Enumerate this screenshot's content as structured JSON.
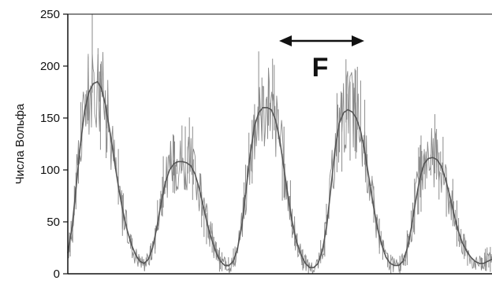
{
  "chart_data": {
    "type": "line",
    "title": "",
    "xlabel": "",
    "ylabel": "Числа Вольфа",
    "ylim": [
      0,
      250
    ],
    "yticks": [
      0,
      50,
      100,
      150,
      200,
      250
    ],
    "xlim": [
      0,
      100
    ],
    "grid": false,
    "legend": "none",
    "annotation": {
      "text": "F",
      "type": "double-arrow"
    },
    "colors": {
      "raw_series": "#8a8a8a",
      "smooth_series": "#555555",
      "axis": "#111111",
      "background": "#ffffff"
    },
    "peaks": [
      {
        "x": 7.2,
        "y": 185,
        "w": 3.0
      },
      {
        "x": 28.5,
        "y": 108,
        "w": 3.2
      },
      {
        "x": 50.5,
        "y": 160,
        "w": 3.1
      },
      {
        "x": 71.5,
        "y": 158,
        "w": 2.9
      },
      {
        "x": 93.2,
        "y": 112,
        "w": 3.0
      }
    ],
    "series": [
      {
        "kind": "smoothed",
        "x": [
          0,
          1,
          2,
          3,
          4,
          5,
          6,
          7,
          8,
          9,
          10,
          11,
          12,
          13,
          14,
          15,
          16,
          17,
          18,
          19,
          20,
          21,
          22,
          23,
          24,
          25,
          26,
          27,
          28,
          29,
          30,
          31,
          32,
          33,
          34,
          35,
          36,
          37,
          38,
          39,
          40,
          41,
          42,
          43,
          44,
          45,
          46,
          47,
          48,
          49,
          50,
          51,
          52,
          53,
          54,
          55,
          56,
          57,
          58,
          59,
          60,
          61,
          62,
          63,
          64,
          65,
          66,
          67,
          68,
          69,
          70,
          71,
          72,
          73,
          74,
          75,
          76,
          77,
          78,
          79,
          80,
          81,
          82,
          83,
          84,
          85,
          86,
          87,
          88,
          89,
          90,
          91,
          92,
          93,
          94,
          95,
          96,
          97,
          98,
          99,
          100
        ],
        "y": [
          20,
          45,
          85,
          125,
          158,
          175,
          183,
          185,
          178,
          160,
          135,
          108,
          82,
          60,
          42,
          28,
          18,
          12,
          10,
          14,
          25,
          45,
          68,
          88,
          100,
          106,
          108,
          108,
          107,
          104,
          96,
          82,
          64,
          46,
          32,
          20,
          12,
          8,
          8,
          12,
          24,
          46,
          80,
          115,
          142,
          155,
          160,
          160,
          158,
          148,
          128,
          100,
          72,
          48,
          30,
          18,
          10,
          6,
          6,
          10,
          22,
          45,
          82,
          120,
          145,
          155,
          158,
          156,
          150,
          138,
          118,
          92,
          66,
          44,
          28,
          16,
          10,
          8,
          8,
          12,
          24,
          45,
          70,
          92,
          106,
          111,
          112,
          110,
          104,
          92,
          76,
          58,
          42,
          30,
          22,
          16,
          12,
          10,
          10,
          12,
          14
        ]
      }
    ]
  }
}
